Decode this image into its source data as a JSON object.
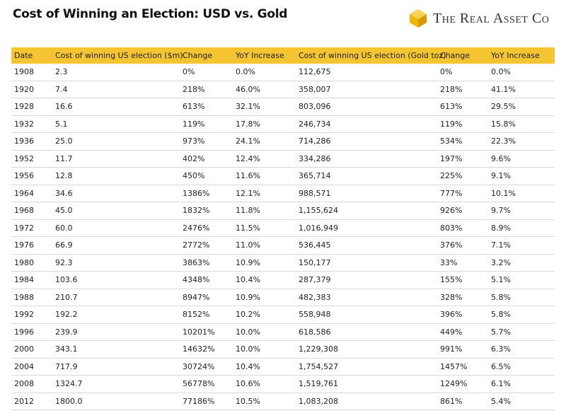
{
  "header": {
    "title": "Cost of Winning an Election: USD vs. Gold",
    "logo": "The Real Asset Co"
  },
  "table": {
    "columns": [
      "Date",
      "Cost of winning US election ($m).",
      "Change",
      "YoY Increase",
      "Cost of winning US election (Gold toz)",
      "Change",
      "YoY Increase"
    ],
    "rows": [
      [
        "1908",
        "2.3",
        "0%",
        "0.0%",
        "112,675",
        "0%",
        "0.0%"
      ],
      [
        "1920",
        "7.4",
        "218%",
        "46.0%",
        "358,007",
        "218%",
        "41.1%"
      ],
      [
        "1928",
        "16.6",
        "613%",
        "32.1%",
        "803,096",
        "613%",
        "29.5%"
      ],
      [
        "1932",
        "5.1",
        "119%",
        "17.8%",
        "246,734",
        "119%",
        "15.8%"
      ],
      [
        "1936",
        "25.0",
        "973%",
        "24.1%",
        "714,286",
        "534%",
        "22.3%"
      ],
      [
        "1952",
        "11.7",
        "402%",
        "12.4%",
        "334,286",
        "197%",
        "9.6%"
      ],
      [
        "1956",
        "12.8",
        "450%",
        "11.6%",
        "365,714",
        "225%",
        "9.1%"
      ],
      [
        "1964",
        "34.6",
        "1386%",
        "12.1%",
        "988,571",
        "777%",
        "10.1%"
      ],
      [
        "1968",
        "45.0",
        "1832%",
        "11.8%",
        "1,155,624",
        "926%",
        "9.7%"
      ],
      [
        "1972",
        "60.0",
        "2476%",
        "11.5%",
        "1,016,949",
        "803%",
        "8.9%"
      ],
      [
        "1976",
        "66.9",
        "2772%",
        "11.0%",
        "536,445",
        "376%",
        "7.1%"
      ],
      [
        "1980",
        "92.3",
        "3863%",
        "10.9%",
        "150,177",
        "33%",
        "3.2%"
      ],
      [
        "1984",
        "103.6",
        "4348%",
        "10.4%",
        "287,379",
        "155%",
        "5.1%"
      ],
      [
        "1988",
        "210.7",
        "8947%",
        "10.9%",
        "482,383",
        "328%",
        "5.8%"
      ],
      [
        "1992",
        "192.2",
        "8152%",
        "10.2%",
        "558,948",
        "396%",
        "5.8%"
      ],
      [
        "1996",
        "239.9",
        "10201%",
        "10.0%",
        "618,586",
        "449%",
        "5.7%"
      ],
      [
        "2000",
        "343.1",
        "14632%",
        "10.0%",
        "1,229,308",
        "991%",
        "6.3%"
      ],
      [
        "2004",
        "717.9",
        "30724%",
        "10.4%",
        "1,754,527",
        "1457%",
        "6.5%"
      ],
      [
        "2008",
        "1324.7",
        "56778%",
        "10.6%",
        "1,519,761",
        "1249%",
        "6.1%"
      ],
      [
        "2012",
        "1800.0",
        "77186%",
        "10.5%",
        "1,083,208",
        "861%",
        "5.4%"
      ]
    ]
  }
}
